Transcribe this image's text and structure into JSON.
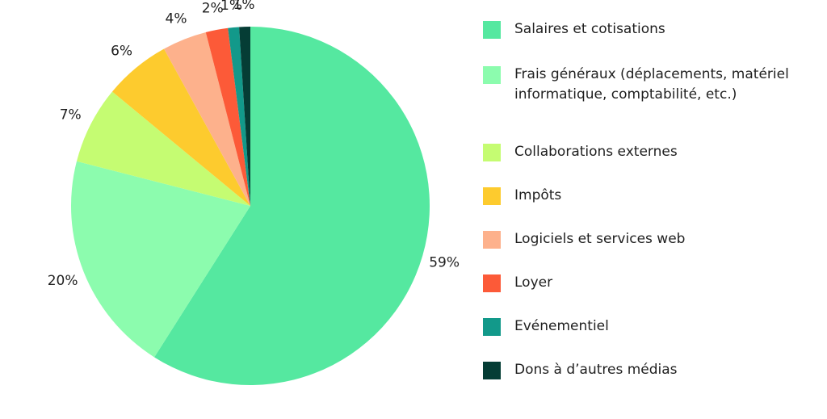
{
  "chart_data": {
    "type": "pie",
    "slices": [
      {
        "label": "Salaires et cotisations",
        "value": 59,
        "display": "59%",
        "color": "#55E8A0"
      },
      {
        "label": "Frais généraux (déplacements, matériel informatique, comptabilité, etc.)",
        "value": 20,
        "display": "20%",
        "color": "#8CFCAE"
      },
      {
        "label": "Collaborations externes",
        "value": 7,
        "display": "7%",
        "color": "#C5FC72"
      },
      {
        "label": "Impôts",
        "value": 6,
        "display": "6%",
        "color": "#FDCB2E"
      },
      {
        "label": "Logiciels et services web",
        "value": 4,
        "display": "4%",
        "color": "#FDB18C"
      },
      {
        "label": "Loyer",
        "value": 2,
        "display": "2%",
        "color": "#FC5A38"
      },
      {
        "label": "Evénementiel",
        "value": 1,
        "display": "1%",
        "color": "#12998A"
      },
      {
        "label": "Dons à d’autres médias",
        "value": 1,
        "display": "1%",
        "color": "#053D35"
      }
    ],
    "legend_position": "right"
  }
}
